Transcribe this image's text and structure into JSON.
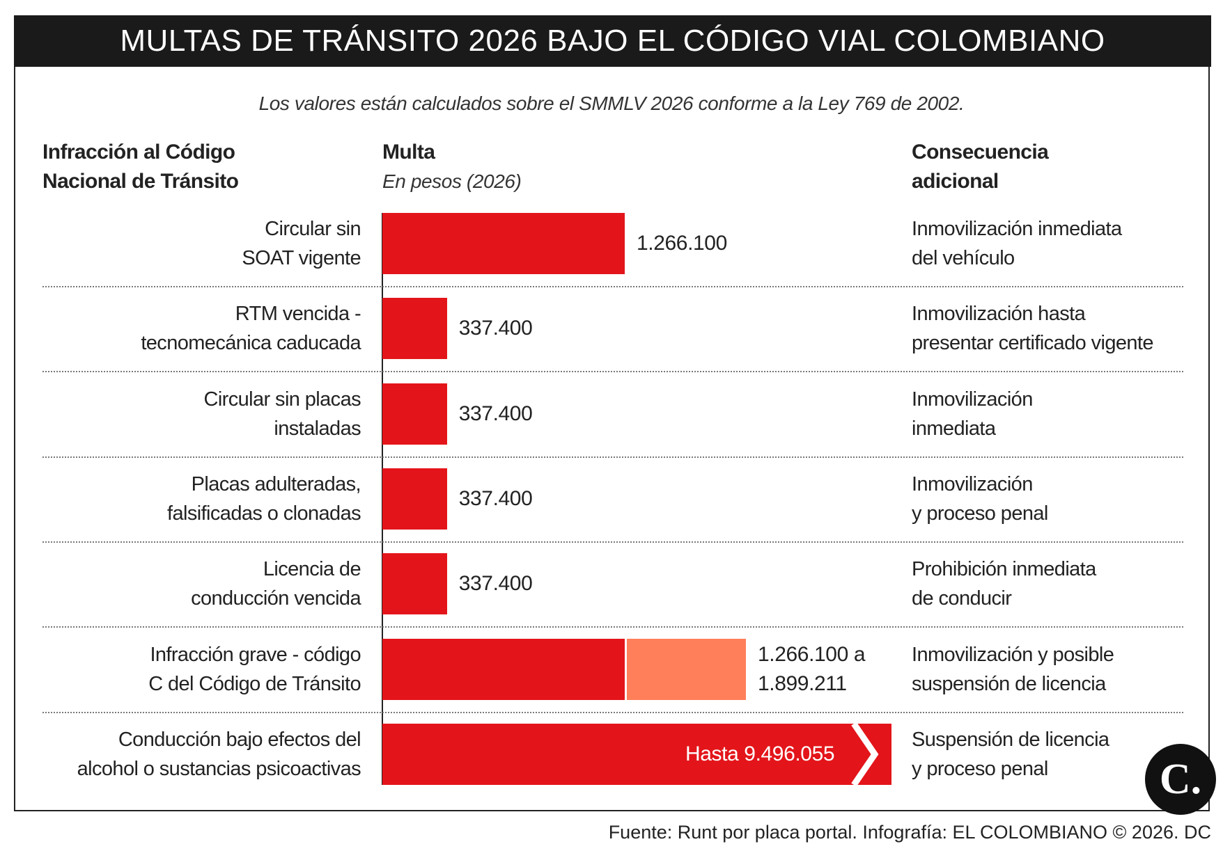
{
  "chart_data": {
    "type": "bar",
    "title": "MULTAS DE TRÁNSITO 2026 BAJO EL CÓDIGO VIAL COLOMBIANO",
    "subtitle": "Los valores están calculados sobre el SMMLV 2026 conforme a la Ley 769 de 2002.",
    "category_header": "Infracción al Código\nNacional de Tránsito",
    "value_header": "Multa",
    "value_subheader": "En pesos (2026)",
    "note_header": "Consecuencia\nadicional",
    "categories": [
      "Circular sin\nSOAT vigente",
      "RTM vencida -\ntecnomecánica caducada",
      "Circular sin placas\ninstaladas",
      "Placas adulteradas,\nfalsificadas o clonadas",
      "Licencia de\nconducción vencida",
      "Infracción grave - código\nC del Código de Tránsito",
      "Conducción bajo efectos del\nalcohol o sustancias psicoactivas"
    ],
    "notes": [
      "Inmovilización inmediata\ndel vehículo",
      "Inmovilización hasta\npresentar certificado vigente",
      "Inmovilización\ninmediata",
      "Inmovilización\ny proceso penal",
      "Prohibición inmediata\nde conducir",
      "Inmovilización y posible\nsuspensión de licencia",
      "Suspensión de licencia\ny proceso penal"
    ],
    "series": [
      {
        "color": "#e3151a",
        "values": [
          1266100,
          337400,
          337400,
          337400,
          337400,
          1266100,
          9496055
        ],
        "value_labels": [
          "1.266.100",
          "337.400",
          "337.400",
          "337.400",
          "337.400",
          "1.266.100 a\n1.899.211",
          "Hasta 9.496.055"
        ]
      },
      {
        "color": "#ff7f5a",
        "values": [
          null,
          null,
          null,
          null,
          null,
          1899211,
          null
        ]
      }
    ],
    "source": "Fuente: Runt por placa portal. Infografía: EL COLOMBIANO © 2026. DC",
    "logo": "C."
  }
}
